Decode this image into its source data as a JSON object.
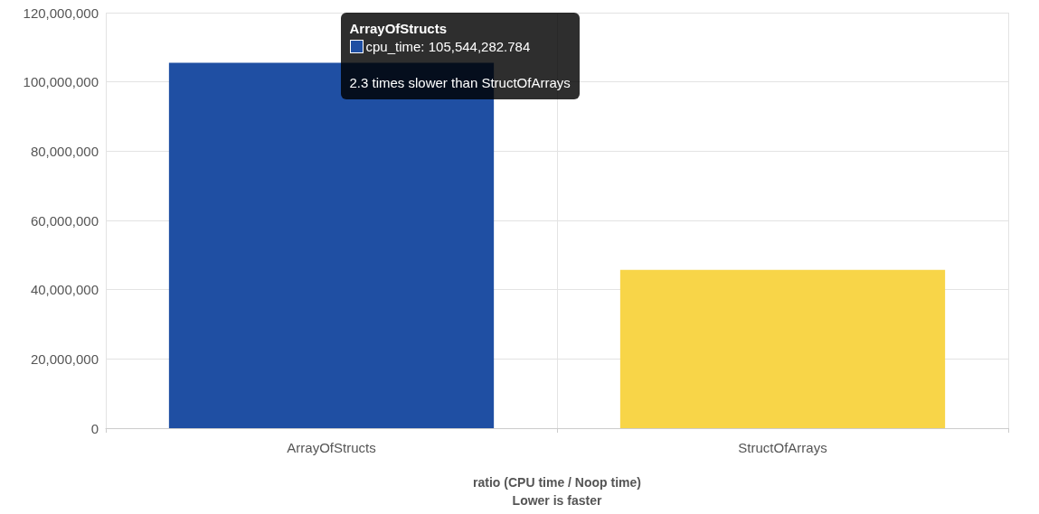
{
  "chart_data": {
    "type": "bar",
    "xlabel": "ratio (CPU time / Noop time)\nLower is faster",
    "categories": [
      "ArrayOfStructs",
      "StructOfArrays"
    ],
    "values": [
      105544282.784,
      45700000
    ],
    "colors": [
      "#1f4fa3",
      "#f8d548"
    ],
    "ylim": [
      0,
      120000000
    ],
    "yticks": [
      0,
      {
        "value": 20000000,
        "label": "20,000,000"
      },
      {
        "value": 40000000,
        "label": "40,000,000"
      },
      {
        "value": 60000000,
        "label": "60,000,000"
      },
      {
        "value": 80000000,
        "label": "80,000,000"
      },
      {
        "value": 100000000,
        "label": "100,000,000"
      },
      {
        "value": 120000000,
        "label": "120,000,000"
      }
    ],
    "grid": true,
    "annotations": [
      "ArrayOfStructs",
      "cpu_time: 105,544,282.784",
      "2.3 times slower than StructOfArrays"
    ]
  }
}
